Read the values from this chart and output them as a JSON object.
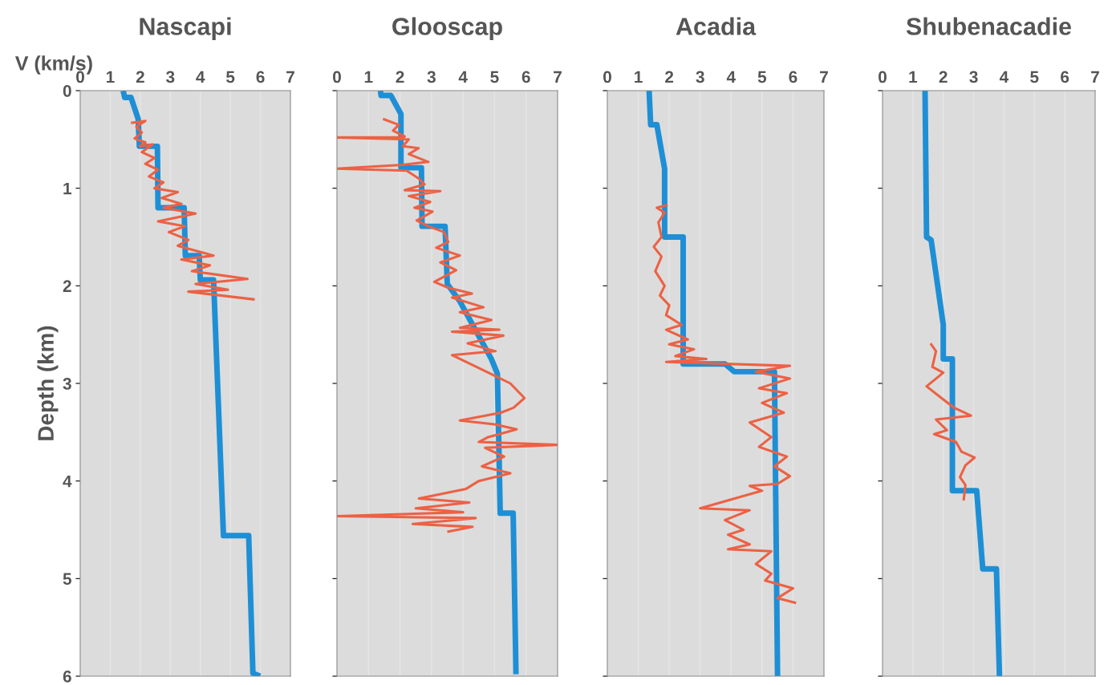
{
  "chart_data": [
    {
      "type": "line",
      "title": "Nascapi",
      "xlabel": "V (km/s)",
      "ylabel": "Depth (km)",
      "xlim": [
        0,
        7
      ],
      "xticks": [
        0,
        1,
        2,
        3,
        4,
        5,
        6,
        7
      ],
      "ylim": [
        6,
        0
      ],
      "yticks": [
        0,
        1,
        2,
        3,
        4,
        5,
        6
      ],
      "grid": "x",
      "series": [
        {
          "color": "#1e8fd5",
          "x": [
            1.43,
            1.48,
            1.69,
            1.93,
            1.97,
            2.57,
            2.59,
            3.46,
            3.5,
            3.96,
            4.0,
            4.44,
            4.77,
            5.61,
            5.75,
            5.99
          ],
          "values": [
            0,
            0.07,
            0.07,
            0.29,
            0.57,
            0.57,
            1.2,
            1.2,
            1.69,
            1.69,
            1.94,
            1.94,
            4.56,
            4.56,
            5.97,
            6
          ]
        },
        {
          "color": "#ec6144",
          "x": [
            1.69,
            2.17,
            1.87,
            2.05,
            1.81,
            2.17,
            1.99,
            2.41,
            2.05,
            2.47,
            2.17,
            2.59,
            2.29,
            2.77,
            2.47,
            3.25,
            2.71,
            3.37,
            2.77,
            3.84,
            2.59,
            3.48,
            2.95,
            3.6,
            3.25,
            4.44,
            3.37,
            4.32,
            3.72,
            5.57,
            3.84,
            4.92,
            3.6,
            5.81
          ],
          "values": [
            0.33,
            0.31,
            0.37,
            0.43,
            0.49,
            0.53,
            0.57,
            0.55,
            0.63,
            0.69,
            0.75,
            0.81,
            0.88,
            0.94,
            1.0,
            1.04,
            1.1,
            1.16,
            1.2,
            1.26,
            1.34,
            1.39,
            1.45,
            1.53,
            1.59,
            1.69,
            1.73,
            1.79,
            1.85,
            1.93,
            1.98,
            2.04,
            2.06,
            2.14
          ]
        }
      ]
    },
    {
      "type": "line",
      "title": "Glooscap",
      "xlim": [
        0,
        7
      ],
      "xticks": [
        0,
        1,
        2,
        3,
        4,
        5,
        6,
        7
      ],
      "ylim": [
        6,
        0
      ],
      "yticks": [
        0,
        1,
        2,
        3,
        4,
        5,
        6
      ],
      "grid": "x",
      "tick_labels": "x",
      "series": [
        {
          "color": "#1e8fd5",
          "x": [
            1.38,
            1.4,
            1.71,
            2.03,
            2.03,
            2.68,
            2.7,
            3.43,
            3.5,
            3.9,
            4.9,
            5.09,
            5.18,
            5.59,
            5.68
          ],
          "values": [
            0,
            0.05,
            0.05,
            0.24,
            0.79,
            0.79,
            1.39,
            1.39,
            1.98,
            2.16,
            2.75,
            2.9,
            4.33,
            4.33,
            5.98
          ]
        },
        {
          "color": "#ec6144",
          "x": [
            1.46,
            1.96,
            1.78,
            2.15,
            2.03,
            0,
            2.28,
            2.09,
            2.59,
            2.28,
            2.9,
            2.09,
            0,
            2.21,
            2.59,
            2.78,
            2.15,
            3.28,
            2.28,
            2.96,
            2.46,
            3.03,
            2.53,
            2.9,
            3.4,
            3.53,
            3.15,
            3.9,
            3.28,
            3.78,
            3.09,
            3.53,
            4.28,
            3.65,
            4.65,
            3.9,
            4.9,
            3.9,
            5.15,
            3.65,
            5.28,
            4.15,
            5.03,
            3.65,
            5.0,
            5.5,
            5.95,
            5.6,
            5.2,
            3.9,
            5.0,
            5.7,
            4.8,
            4.5,
            7.0,
            4.7,
            5.3,
            4.6,
            5.5,
            4.5,
            4.1,
            2.6,
            4.2,
            2.5,
            4.0,
            0,
            4.4,
            2.4,
            4.3,
            3.5
          ],
          "values": [
            0.29,
            0.35,
            0.41,
            0.47,
            0.48,
            0.48,
            0.5,
            0.57,
            0.59,
            0.65,
            0.73,
            0.76,
            0.8,
            0.82,
            0.9,
            0.96,
            1.02,
            1.03,
            1.08,
            1.14,
            1.2,
            1.24,
            1.33,
            1.39,
            1.45,
            1.55,
            1.61,
            1.69,
            1.76,
            1.84,
            1.96,
            2.02,
            2.08,
            2.12,
            2.22,
            2.27,
            2.35,
            2.43,
            2.45,
            2.47,
            2.51,
            2.59,
            2.67,
            2.71,
            2.92,
            3.0,
            3.15,
            3.25,
            3.3,
            3.38,
            3.42,
            3.47,
            3.55,
            3.6,
            3.63,
            3.66,
            3.75,
            3.85,
            3.92,
            4.0,
            4.08,
            4.18,
            4.22,
            4.28,
            4.32,
            4.36,
            4.38,
            4.44,
            4.47,
            4.52
          ]
        }
      ]
    },
    {
      "type": "line",
      "title": "Acadia",
      "xlim": [
        0,
        7
      ],
      "xticks": [
        0,
        1,
        2,
        3,
        4,
        5,
        6,
        7
      ],
      "ylim": [
        6,
        0
      ],
      "yticks": [
        0,
        1,
        2,
        3,
        4,
        5,
        6
      ],
      "grid": "x",
      "tick_labels": "x",
      "series": [
        {
          "color": "#1e8fd5",
          "x": [
            1.35,
            1.4,
            1.6,
            1.85,
            1.85,
            2.45,
            2.45,
            3.8,
            4.1,
            5.4,
            5.5
          ],
          "values": [
            0,
            0.35,
            0.35,
            0.8,
            1.5,
            1.5,
            2.8,
            2.8,
            2.88,
            2.88,
            6
          ]
        },
        {
          "color": "#ec6144",
          "x": [
            1.95,
            1.6,
            1.85,
            1.65,
            1.75,
            1.5,
            1.75,
            1.55,
            1.85,
            1.7,
            2.0,
            1.9,
            2.4,
            1.9,
            2.6,
            2.0,
            2.8,
            2.2,
            3.2,
            1.9,
            5.9,
            4.8,
            5.9,
            4.9,
            5.8,
            5.0,
            5.7,
            4.6,
            5.3,
            4.9,
            5.8,
            5.4,
            5.9,
            5.5,
            4.6,
            5.0,
            3.0,
            4.6,
            3.8,
            4.4,
            3.9,
            4.6,
            3.9,
            5.3,
            4.8,
            5.3,
            5.1,
            6.0,
            5.5,
            6.1
          ],
          "values": [
            1.17,
            1.2,
            1.25,
            1.35,
            1.5,
            1.6,
            1.7,
            1.85,
            2.0,
            2.1,
            2.2,
            2.3,
            2.4,
            2.45,
            2.55,
            2.6,
            2.65,
            2.72,
            2.75,
            2.78,
            2.82,
            2.88,
            2.95,
            3.05,
            3.1,
            3.2,
            3.3,
            3.4,
            3.55,
            3.65,
            3.75,
            3.85,
            3.95,
            4.03,
            4.05,
            4.1,
            4.28,
            4.3,
            4.4,
            4.5,
            4.55,
            4.65,
            4.7,
            4.72,
            4.85,
            4.95,
            5.02,
            5.1,
            5.2,
            5.25
          ]
        }
      ]
    },
    {
      "type": "line",
      "title": "Shubenacadie",
      "xlim": [
        0,
        7
      ],
      "xticks": [
        0,
        1,
        2,
        3,
        4,
        5,
        6,
        7
      ],
      "ylim": [
        6,
        0
      ],
      "yticks": [
        0,
        1,
        2,
        3,
        4,
        5,
        6
      ],
      "grid": "x",
      "tick_labels": "x",
      "series": [
        {
          "color": "#1e8fd5",
          "x": [
            1.4,
            1.45,
            1.6,
            2.0,
            2.0,
            2.3,
            2.3,
            3.1,
            3.3,
            3.75,
            3.85
          ],
          "values": [
            0,
            1.5,
            1.53,
            2.4,
            2.75,
            2.75,
            4.1,
            4.1,
            4.9,
            4.9,
            6
          ]
        },
        {
          "color": "#ec6144",
          "x": [
            1.58,
            1.76,
            1.64,
            2.0,
            1.45,
            1.94,
            2.36,
            2.91,
            1.76,
            2.12,
            1.7,
            2.42,
            2.6,
            3.03,
            2.73,
            2.55,
            2.73,
            2.67
          ],
          "values": [
            2.59,
            2.67,
            2.83,
            2.89,
            3.03,
            3.15,
            3.25,
            3.33,
            3.37,
            3.48,
            3.52,
            3.6,
            3.7,
            3.76,
            3.84,
            3.96,
            4.04,
            4.2
          ]
        }
      ]
    }
  ]
}
